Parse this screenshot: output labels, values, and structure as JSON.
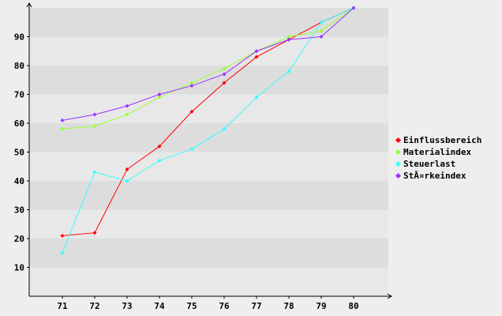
{
  "chart_data": {
    "type": "line",
    "title": "",
    "xlabel": "",
    "ylabel": "",
    "x": [
      71,
      72,
      73,
      74,
      75,
      76,
      77,
      78,
      79,
      80
    ],
    "ylim": [
      0,
      100
    ],
    "yticks": [
      10,
      20,
      30,
      40,
      50,
      60,
      70,
      80,
      90
    ],
    "grid": "horizontal alternating bands",
    "legend_position": "right",
    "series": [
      {
        "name": "Einflussbereich",
        "color": "#ff0000",
        "values": [
          21,
          22,
          44,
          52,
          64,
          74,
          83,
          89,
          95,
          100
        ]
      },
      {
        "name": "Materialindex",
        "color": "#99ff33",
        "values": [
          58,
          59,
          63,
          69,
          74,
          79,
          85,
          90,
          92,
          100
        ]
      },
      {
        "name": "Steuerlast",
        "color": "#33ffff",
        "values": [
          15,
          43,
          40,
          47,
          51,
          58,
          69,
          78,
          95,
          100
        ]
      },
      {
        "name": "StÃ¤rkeindex",
        "color": "#9933ff",
        "values": [
          61,
          63,
          66,
          70,
          73,
          77,
          85,
          89,
          90,
          100
        ]
      }
    ]
  }
}
